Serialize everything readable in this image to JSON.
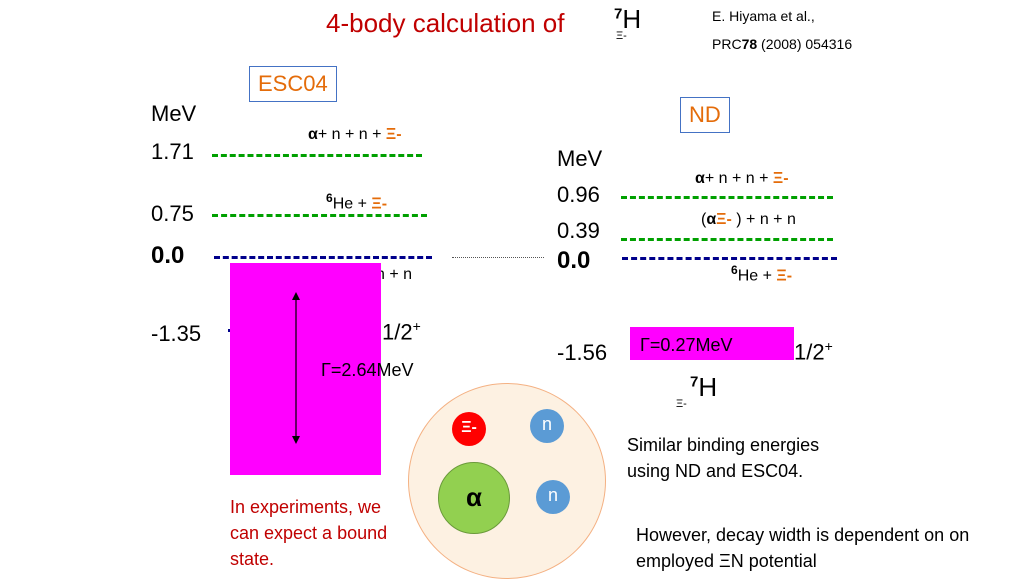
{
  "title": {
    "text": "4-body calculation of",
    "nucleus_symbol": "H",
    "mass_number": "7",
    "sub": "Ξ-"
  },
  "reference": {
    "line1": "E. Hiyama et al.,",
    "journal": "PRC",
    "volume": "78",
    "rest": "(2008) 054316"
  },
  "left": {
    "potential": "ESC04",
    "unit": "MeV",
    "levels": [
      {
        "value": "1.71",
        "label_alpha": "α",
        "label_rest": "+ n + n +",
        "label_xi": "Ξ-"
      },
      {
        "value": "0.75",
        "label_mass": "6",
        "label_rest": "He +",
        "label_xi": "Ξ-"
      },
      {
        "value": "0.0",
        "label_partial": "n + n"
      },
      {
        "value": "-1.35",
        "spin": "1/2",
        "parity": "+"
      }
    ],
    "width": "Γ=2.64MeV"
  },
  "right": {
    "potential": "ND",
    "unit": "MeV",
    "levels": [
      {
        "value": "0.96",
        "label_alpha": "α",
        "label_rest": "+ n + n +",
        "label_xi": "Ξ-"
      },
      {
        "value": "0.39",
        "label_open": "(",
        "label_alpha": "α",
        "label_xi": "Ξ-",
        "label_rest": ") + n + n"
      },
      {
        "value": "0.0",
        "label_mass": "6",
        "label_rest": "He +",
        "label_xi": "Ξ-"
      },
      {
        "value": "-1.56",
        "width": "Γ=0.27MeV",
        "spin": "1/2",
        "parity": "+"
      }
    ],
    "nucleus": {
      "symbol": "H",
      "mass_number": "7",
      "sub": "Ξ-"
    }
  },
  "cluster": {
    "xi": "Ξ-",
    "n1": "n",
    "alpha": "α",
    "n2": "n"
  },
  "notes": {
    "experiments": "In experiments, we can expect a bound state.",
    "similar": "Similar binding energies using ND and ESC04.",
    "however": "However, decay width is dependent on on employed  ΞN potential"
  }
}
